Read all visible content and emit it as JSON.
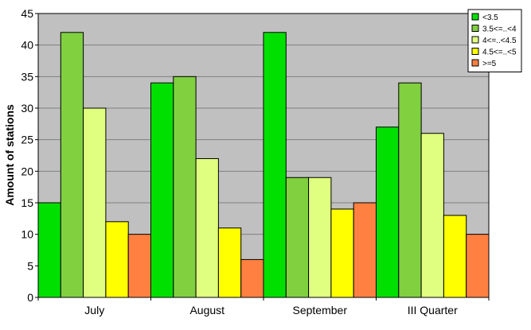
{
  "chart_data": {
    "type": "bar",
    "title": "",
    "xlabel": "",
    "ylabel": "Amount of stations",
    "ylim": [
      0,
      45
    ],
    "yticks": [
      0,
      5,
      10,
      15,
      20,
      25,
      30,
      35,
      40,
      45
    ],
    "grid": true,
    "legend_position": "top-right",
    "background_color": "#c0c0c0",
    "categories": [
      "July",
      "August",
      "September",
      "III Quarter"
    ],
    "series": [
      {
        "name": "<3.5",
        "color": "#00e000",
        "values": [
          15,
          34,
          42,
          27
        ]
      },
      {
        "name": "3.5<=..<4",
        "color": "#80d040",
        "values": [
          42,
          35,
          19,
          34
        ]
      },
      {
        "name": "4<=..<4.5",
        "color": "#e0ff80",
        "values": [
          30,
          22,
          19,
          26
        ]
      },
      {
        "name": "4.5<=..<5",
        "color": "#ffff00",
        "values": [
          12,
          11,
          14,
          13
        ]
      },
      {
        "name": ">=5",
        "color": "#ff8040",
        "values": [
          10,
          6,
          15,
          10
        ]
      }
    ]
  }
}
